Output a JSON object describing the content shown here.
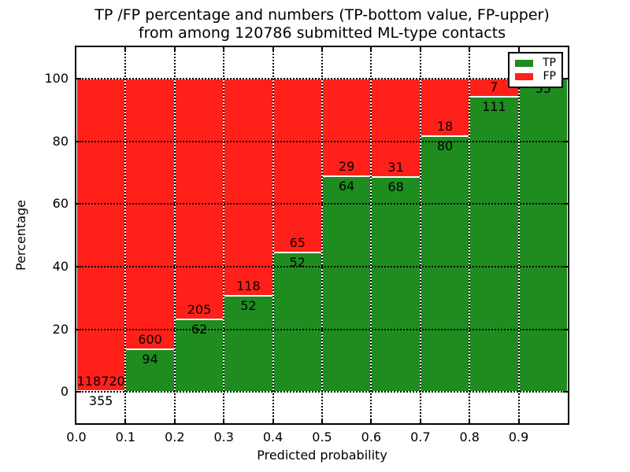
{
  "title": {
    "line1": "TP /FP percentage and numbers (TP-bottom value, FP-upper)",
    "line2": "from among 120786 submitted ML-type contacts"
  },
  "legend": {
    "position": "upper right",
    "items": [
      {
        "label": "TP",
        "color": "#1e8c1e"
      },
      {
        "label": "FP",
        "color": "#ff2119"
      }
    ]
  },
  "colors": {
    "tp_green": "#1e8c1e",
    "fp_red": "#ff2119",
    "grid": "#000000",
    "background": "#ffffff",
    "bar_edge": "#ffffff"
  },
  "chart_data": {
    "type": "bar",
    "stacked": true,
    "normalized_to_percent": true,
    "title": "TP /FP percentage and numbers (TP-bottom value, FP-upper) from among 120786 submitted ML-type contacts",
    "xlabel": "Predicted probability",
    "ylabel": "Percentage",
    "xlim": [
      0.0,
      1.0
    ],
    "ylim": [
      -10,
      110
    ],
    "bin_width": 0.1,
    "categories": [
      "0.0-0.1",
      "0.1-0.2",
      "0.2-0.3",
      "0.3-0.4",
      "0.4-0.5",
      "0.5-0.6",
      "0.6-0.7",
      "0.7-0.8",
      "0.8-0.9",
      "0.9-1.0"
    ],
    "series": [
      {
        "name": "TP",
        "color": "#1e8c1e",
        "values": [
          355,
          94,
          62,
          52,
          52,
          64,
          68,
          80,
          111,
          55
        ]
      },
      {
        "name": "FP",
        "color": "#ff2119",
        "values": [
          118720,
          600,
          205,
          118,
          65,
          29,
          31,
          18,
          7,
          0
        ]
      }
    ],
    "tp_percent_heights": [
      0.3,
      13.5,
      23.2,
      30.6,
      44.4,
      68.8,
      68.7,
      81.6,
      94.1,
      100.0
    ],
    "total_contacts": 120786,
    "x_tick_labels": [
      "0.0",
      "0.1",
      "0.2",
      "0.3",
      "0.4",
      "0.5",
      "0.6",
      "0.7",
      "0.8",
      "0.9"
    ],
    "x_tick_values": [
      0.0,
      0.1,
      0.2,
      0.3,
      0.4,
      0.5,
      0.6,
      0.7,
      0.8,
      0.9
    ],
    "y_tick_labels": [
      "0",
      "20",
      "40",
      "60",
      "80",
      "100"
    ],
    "y_tick_values": [
      0,
      20,
      40,
      60,
      80,
      100
    ],
    "x_grid_values": [
      0.1,
      0.2,
      0.3,
      0.4,
      0.5,
      0.6,
      0.7,
      0.8,
      0.9
    ],
    "grid_style": "dotted",
    "legend_position": "upper right"
  }
}
